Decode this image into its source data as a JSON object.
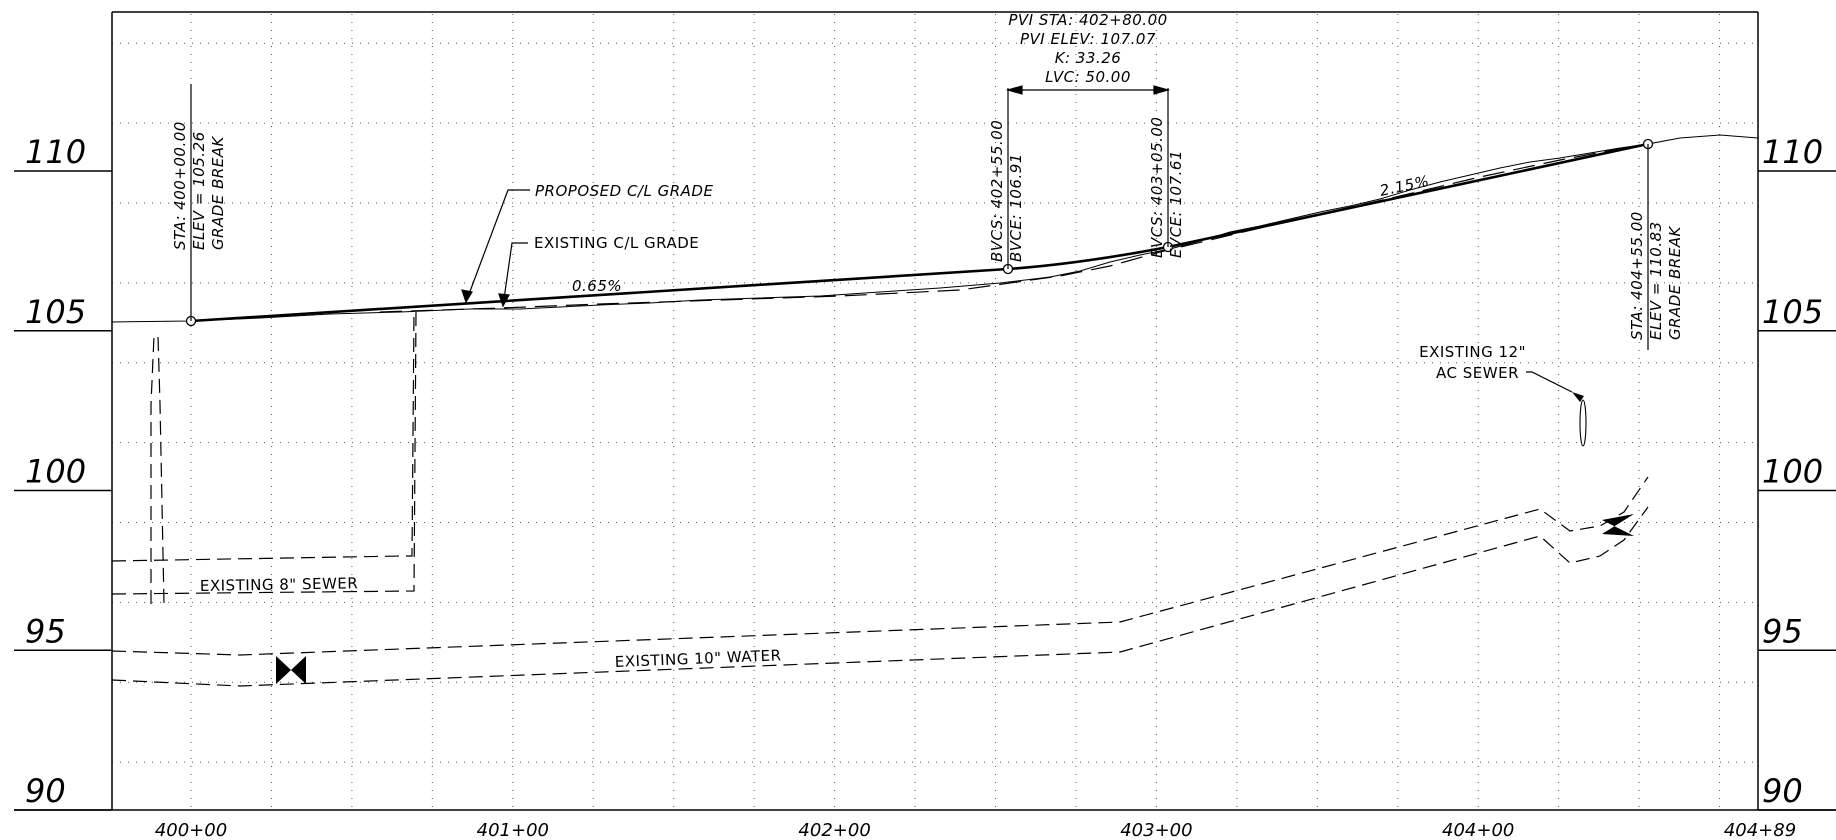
{
  "drawing": {
    "elevation_ticks": [
      {
        "value": "110",
        "elev": 110
      },
      {
        "value": "105",
        "elev": 105
      },
      {
        "value": "100",
        "elev": 100
      },
      {
        "value": "95",
        "elev": 95
      },
      {
        "value": "90",
        "elev": 90
      }
    ],
    "station_ticks": [
      {
        "label": "400+00",
        "sta": 40000
      },
      {
        "label": "401+00",
        "sta": 40100
      },
      {
        "label": "402+00",
        "sta": 40200
      },
      {
        "label": "403+00",
        "sta": 40300
      },
      {
        "label": "404+00",
        "sta": 40400
      },
      {
        "label": "404+89",
        "sta": 40489
      }
    ],
    "pvi": {
      "station": "PVI STA: 402+80.00",
      "elevation": "PVI ELEV: 107.07",
      "k": "K: 33.26",
      "lvc": "LVC: 50.00"
    },
    "bvc": {
      "station": "BVCS: 402+55.00",
      "elevation": "BVCE: 106.91"
    },
    "evc": {
      "station": "EVCS: 403+05.00",
      "elevation": "EVCE: 107.61"
    },
    "grade_break_start": {
      "station": "STA: 400+00.00",
      "elevation": "ELEV = 105.26",
      "label": "GRADE BREAK"
    },
    "grade_break_end": {
      "station": "STA: 404+55.00",
      "elevation": "ELEV = 110.83",
      "label": "GRADE BREAK"
    },
    "slopes": {
      "left": "0.65%",
      "right": "2.15%"
    },
    "callouts": {
      "proposed": "PROPOSED C/L GRADE",
      "existing": "EXISTING C/L GRADE",
      "sewer_8": "EXISTING 8\" SEWER",
      "water_10": "EXISTING 10\" WATER",
      "sewer_12_line1": "EXISTING 12\"",
      "sewer_12_line2": "AC SEWER"
    }
  }
}
